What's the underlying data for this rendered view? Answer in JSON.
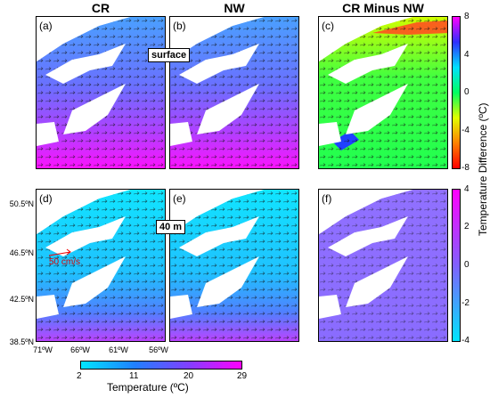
{
  "columns": {
    "left": "CR",
    "middle": "NW",
    "right": "CR Minus NW"
  },
  "panels": {
    "a": "(a)",
    "b": "(b)",
    "c": "(c)",
    "d": "(d)",
    "e": "(e)",
    "f": "(f)"
  },
  "depth_labels": {
    "top": "surface",
    "bottom": "40 m"
  },
  "lat_ticks": [
    "50.5ºN",
    "46.5ºN",
    "42.5ºN",
    "38.5ºN"
  ],
  "lon_ticks": [
    "71ºW",
    "66ºW",
    "61ºW",
    "56ºW"
  ],
  "scale_label": "50 cm/s",
  "temp_colorbar": {
    "ticks": [
      "2",
      "11",
      "20",
      "29"
    ],
    "label": "Temperature (ºC)",
    "colors": [
      "#00e5ff",
      "#2080ff",
      "#8040ff",
      "#ff00ff"
    ]
  },
  "diff_colorbar_top": {
    "ticks": [
      "8",
      "4",
      "0",
      "-4",
      "-8"
    ],
    "colors": [
      "#ff00ff",
      "#3030ff",
      "#00e0ff",
      "#00ff60",
      "#e0ff00",
      "#ff8000",
      "#ff0000"
    ]
  },
  "diff_colorbar_bottom": {
    "ticks": [
      "4",
      "2",
      "0",
      "-2",
      "-4"
    ],
    "colors": [
      "#ff00ff",
      "#8060ff",
      "#00e5ff"
    ]
  },
  "diff_label": "Temperature Difference (ºC)"
}
